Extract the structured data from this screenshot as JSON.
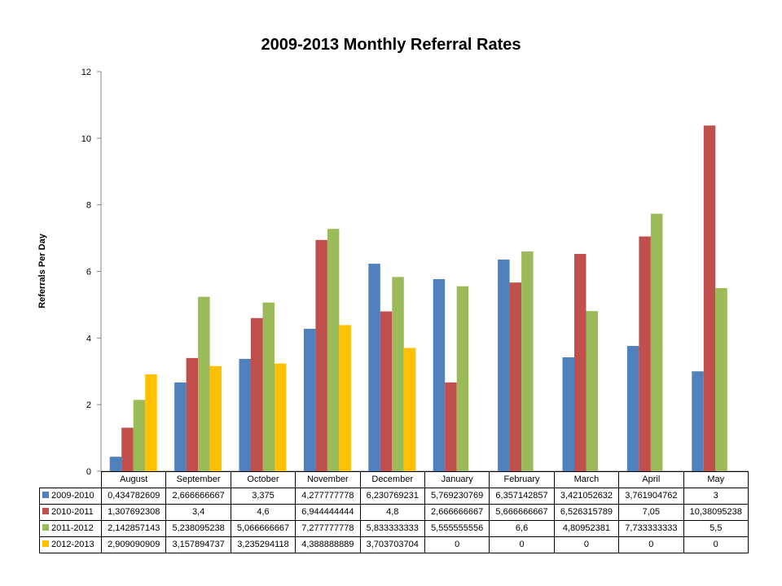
{
  "chart_data": {
    "type": "bar",
    "title": "2009-2013 Monthly Referral Rates",
    "xlabel": "",
    "ylabel": "Referrals Per Day",
    "ylim": [
      0,
      12
    ],
    "yticks": [
      0,
      2,
      4,
      6,
      8,
      10,
      12
    ],
    "grid": false,
    "legend": "data table below chart",
    "categories": [
      "August",
      "September",
      "October",
      "November",
      "December",
      "January",
      "February",
      "March",
      "April",
      "May"
    ],
    "series": [
      {
        "name": "2009-2010",
        "color": "#4F81BD",
        "values": [
          0.434782609,
          2.666666667,
          3.375,
          4.277777778,
          6.230769231,
          5.769230769,
          6.357142857,
          3.421052632,
          3.761904762,
          3
        ],
        "labels": [
          "0,434782609",
          "2,666666667",
          "3,375",
          "4,277777778",
          "6,230769231",
          "5,769230769",
          "6,357142857",
          "3,421052632",
          "3,761904762",
          "3"
        ]
      },
      {
        "name": "2010-2011",
        "color": "#C0504D",
        "values": [
          1.307692308,
          3.4,
          4.6,
          6.944444444,
          4.8,
          2.666666667,
          5.666666667,
          6.526315789,
          7.05,
          10.38095238
        ],
        "labels": [
          "1,307692308",
          "3,4",
          "4,6",
          "6,944444444",
          "4,8",
          "2,666666667",
          "5,666666667",
          "6,526315789",
          "7,05",
          "10,38095238"
        ]
      },
      {
        "name": "2011-2012",
        "color": "#9BBB59",
        "values": [
          2.142857143,
          5.238095238,
          5.066666667,
          7.277777778,
          5.833333333,
          5.555555556,
          6.6,
          4.80952381,
          7.733333333,
          5.5
        ],
        "labels": [
          "2,142857143",
          "5,238095238",
          "5,066666667",
          "7,277777778",
          "5,833333333",
          "5,555555556",
          "6,6",
          "4,80952381",
          "7,733333333",
          "5,5"
        ]
      },
      {
        "name": "2012-2013",
        "color": "#FFC000",
        "values": [
          2.909090909,
          3.157894737,
          3.235294118,
          4.388888889,
          3.703703704,
          0,
          0,
          0,
          0,
          0
        ],
        "labels": [
          "2,909090909",
          "3,157894737",
          "3,235294118",
          "4,388888889",
          "3,703703704",
          "0",
          "0",
          "0",
          "0",
          "0"
        ]
      }
    ]
  }
}
